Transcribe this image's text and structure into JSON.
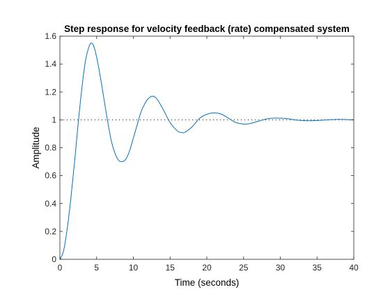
{
  "chart_data": {
    "type": "line",
    "title": "Step response for velocity feedback (rate) compensated system",
    "xlabel": "Time (seconds)",
    "ylabel": "Amplitude",
    "xlim": [
      0,
      40
    ],
    "ylim": [
      0,
      1.6
    ],
    "xticks": [
      "0",
      "5",
      "10",
      "15",
      "20",
      "25",
      "30",
      "35",
      "40"
    ],
    "yticks": [
      "0",
      "0.2",
      "0.4",
      "0.6",
      "0.8",
      "1",
      "1.2",
      "1.4",
      "1.6"
    ],
    "grid": false,
    "reference_line": {
      "y": 1,
      "style": "dotted",
      "color": "#000000"
    },
    "series": [
      {
        "color": "#0072bd",
        "points": [
          [
            0,
            0
          ],
          [
            0.5,
            0.06
          ],
          [
            1,
            0.22
          ],
          [
            1.5,
            0.44
          ],
          [
            2,
            0.7
          ],
          [
            2.5,
            0.98
          ],
          [
            3,
            1.23
          ],
          [
            3.5,
            1.43
          ],
          [
            4,
            1.53
          ],
          [
            4.3,
            1.55
          ],
          [
            4.6,
            1.53
          ],
          [
            5,
            1.45
          ],
          [
            5.5,
            1.31
          ],
          [
            6,
            1.15
          ],
          [
            6.5,
            0.99
          ],
          [
            7,
            0.85
          ],
          [
            7.5,
            0.76
          ],
          [
            8,
            0.71
          ],
          [
            8.5,
            0.7
          ],
          [
            9,
            0.72
          ],
          [
            9.5,
            0.78
          ],
          [
            10,
            0.87
          ],
          [
            10.5,
            0.96
          ],
          [
            11,
            1.05
          ],
          [
            11.5,
            1.11
          ],
          [
            12,
            1.15
          ],
          [
            12.6,
            1.17
          ],
          [
            13.2,
            1.15
          ],
          [
            14,
            1.08
          ],
          [
            15,
            0.98
          ],
          [
            16,
            0.92
          ],
          [
            16.5,
            0.91
          ],
          [
            17,
            0.91
          ],
          [
            18,
            0.95
          ],
          [
            19,
            1.01
          ],
          [
            20,
            1.04
          ],
          [
            21,
            1.05
          ],
          [
            22,
            1.04
          ],
          [
            23,
            1.01
          ],
          [
            24,
            0.98
          ],
          [
            25,
            0.97
          ],
          [
            25.5,
            0.97
          ],
          [
            26,
            0.975
          ],
          [
            27,
            0.99
          ],
          [
            28,
            1.005
          ],
          [
            29,
            1.012
          ],
          [
            30,
            1.012
          ],
          [
            31,
            1.008
          ],
          [
            32,
            1.0
          ],
          [
            33,
            0.995
          ],
          [
            34,
            0.993
          ],
          [
            35,
            0.995
          ],
          [
            36,
            0.999
          ],
          [
            37,
            1.002
          ],
          [
            38,
            1.003
          ],
          [
            39,
            1.002
          ],
          [
            40,
            1.0
          ]
        ]
      }
    ]
  }
}
